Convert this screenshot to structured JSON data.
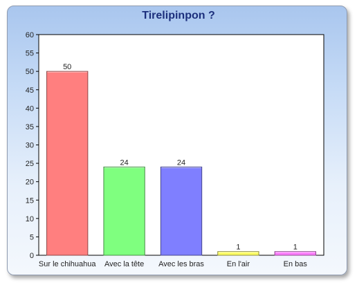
{
  "chart_data": {
    "type": "bar",
    "title": "Tirelipinpon ?",
    "categories": [
      "Sur le chihuahua",
      "Avec la tête",
      "Avec les bras",
      "En l'air",
      "En bas"
    ],
    "values": [
      50,
      24,
      24,
      1,
      1
    ],
    "colors": [
      "#ff7f7f",
      "#7fff7f",
      "#7f7fff",
      "#ffff66",
      "#ff7fff"
    ],
    "ylim": [
      0,
      60
    ],
    "yticks": [
      0,
      5,
      10,
      15,
      20,
      25,
      30,
      35,
      40,
      45,
      50,
      55,
      60
    ],
    "xlabel": "",
    "ylabel": "",
    "grid": false,
    "legend": "none"
  }
}
